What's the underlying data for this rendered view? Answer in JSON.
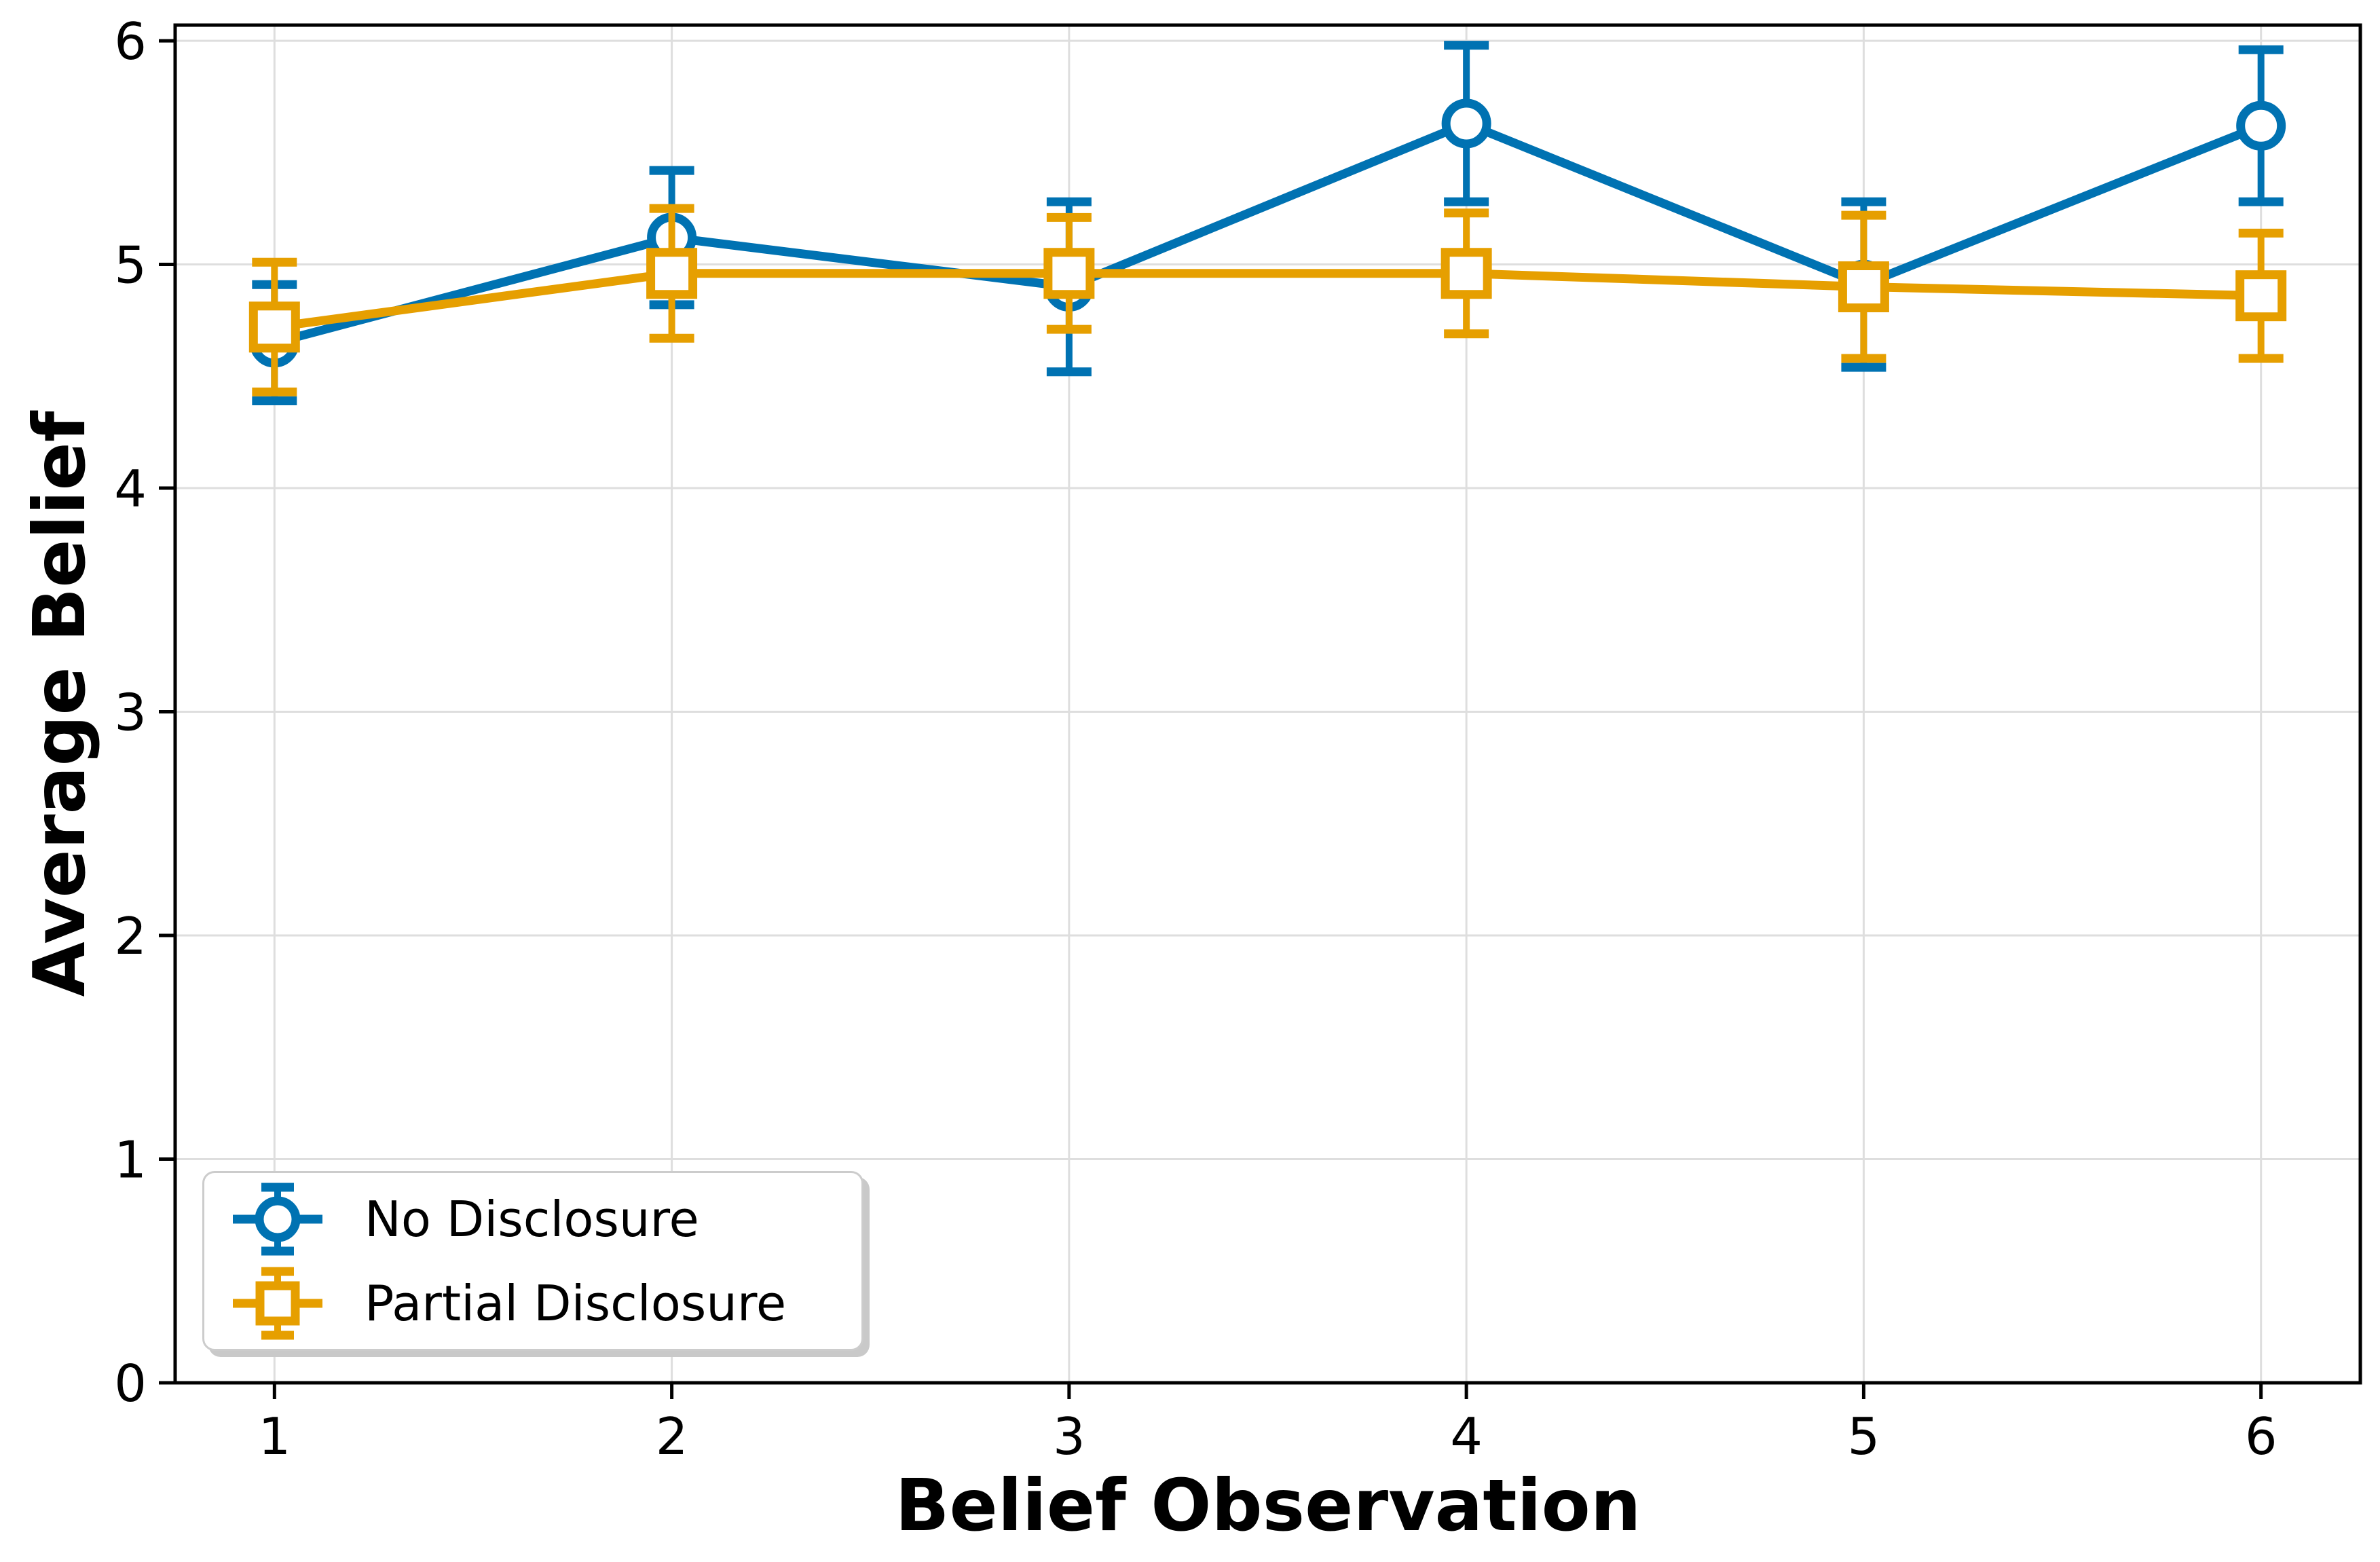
{
  "chart_data": {
    "type": "line",
    "title": "",
    "xlabel": "Belief Observation",
    "ylabel": "Average Belief",
    "x": [
      1,
      2,
      3,
      4,
      5,
      6
    ],
    "xticks": [
      1,
      2,
      3,
      4,
      5,
      6
    ],
    "yticks": [
      0,
      1,
      2,
      3,
      4,
      5,
      6
    ],
    "xlim": [
      0.75,
      6.25
    ],
    "ylim": [
      0,
      6.07
    ],
    "grid": true,
    "grid_color": "#dedede",
    "spine_color": "#000000",
    "legend_position": "lower left",
    "series": [
      {
        "name": "No Disclosure",
        "marker": "circle",
        "color": "#0072B2",
        "values": [
          4.65,
          5.12,
          4.9,
          5.63,
          4.91,
          5.62
        ],
        "errors": [
          0.26,
          0.3,
          0.38,
          0.35,
          0.37,
          0.34
        ]
      },
      {
        "name": "Partial Disclosure",
        "marker": "square",
        "color": "#E69F00",
        "values": [
          4.72,
          4.96,
          4.96,
          4.96,
          4.9,
          4.86
        ],
        "errors": [
          0.29,
          0.29,
          0.25,
          0.27,
          0.32,
          0.28
        ]
      }
    ]
  }
}
